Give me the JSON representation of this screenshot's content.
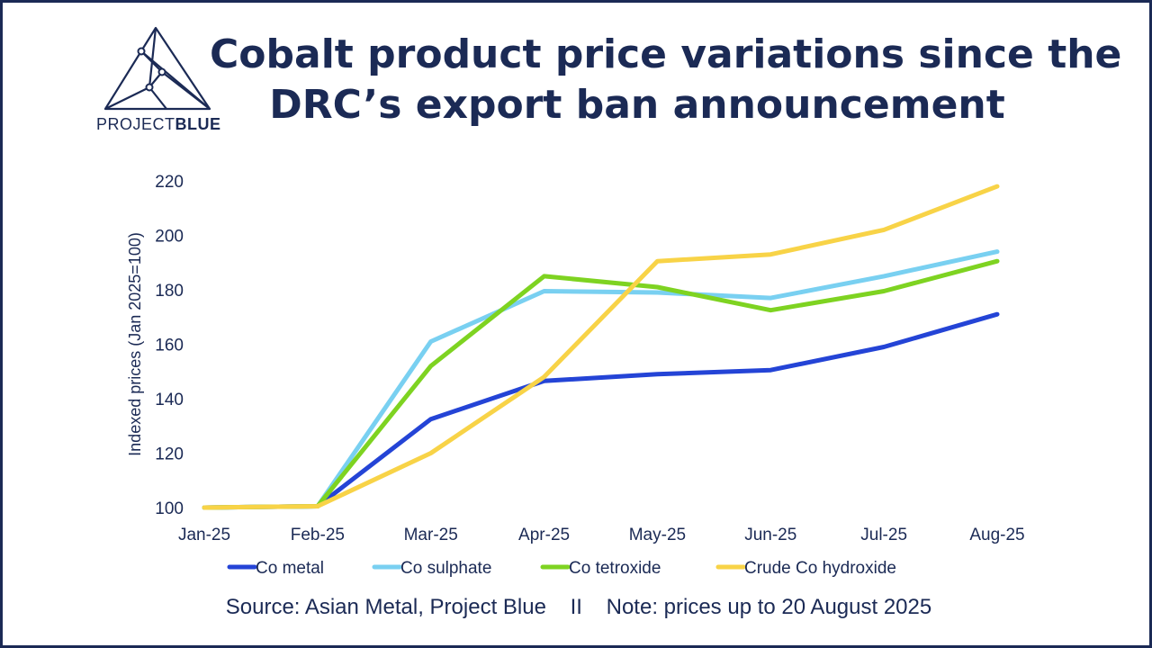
{
  "brand": {
    "prefix": "PROJECT",
    "suffix": "BLUE"
  },
  "title": {
    "line1": "Cobalt product price variations since the",
    "line2": "DRC’s export ban announcement"
  },
  "source_note": "Source: Asian Metal, Project Blue    II    Note: prices up to 20 August 2025",
  "colors": {
    "frame": "#1b2a55",
    "text": "#1b2a55"
  },
  "chart_data": {
    "type": "line",
    "x": [
      "Jan-25",
      "Feb-25",
      "Mar-25",
      "Apr-25",
      "May-25",
      "Jun-25",
      "Jul-25",
      "Aug-25"
    ],
    "ylabel": "Indexed prices (Jan 2025=100)",
    "xlabel": "",
    "ylim": [
      100,
      220
    ],
    "yticks": [
      100,
      120,
      140,
      160,
      180,
      200,
      220
    ],
    "grid": false,
    "legend_position": "bottom",
    "series": [
      {
        "name": "Co metal",
        "color": "#2444d6",
        "values": [
          100,
          100.5,
          132.5,
          146.5,
          149,
          150.5,
          159,
          171
        ]
      },
      {
        "name": "Co sulphate",
        "color": "#79d0f1",
        "values": [
          100,
          100.5,
          161,
          179.5,
          179,
          177,
          185,
          194
        ]
      },
      {
        "name": "Co tetroxide",
        "color": "#7ed321",
        "values": [
          100,
          100.5,
          152,
          185,
          181,
          172.5,
          179.5,
          190.5
        ]
      },
      {
        "name": "Crude Co hydroxide",
        "color": "#f8d347",
        "values": [
          100,
          100.5,
          120,
          148,
          190.5,
          193,
          202,
          218
        ]
      }
    ]
  }
}
